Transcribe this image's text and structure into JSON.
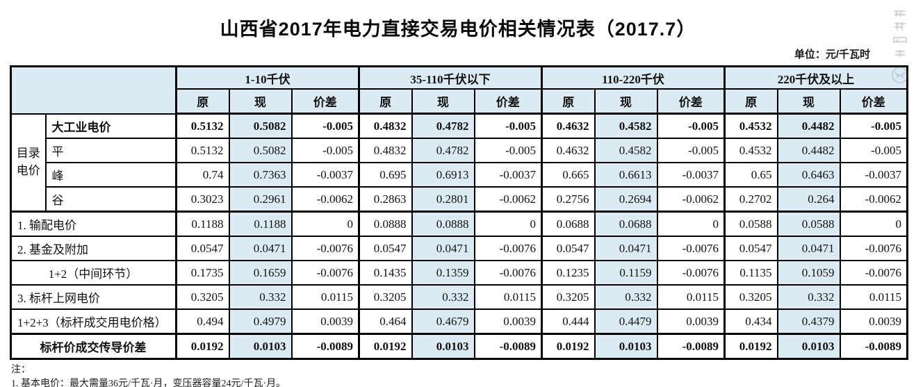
{
  "title": "山西省2017年电力直接交易电价相关情况表（2017.7）",
  "unit_label": "单位：元/千瓦时",
  "watermark_icon": "illegible-vertical-stamp",
  "colors": {
    "header_blue": "#dcebf3",
    "current_price_column_blue": "#dcebf3",
    "border_black": "#000000"
  },
  "table": {
    "catalog_group_label": "目录电价",
    "voltage_groups": [
      "1-10千伏",
      "35-110千伏以下",
      "110-220千伏",
      "220千伏及以上"
    ],
    "sub_headers": [
      "原",
      "现",
      "价差"
    ],
    "rows": [
      {
        "label": "大工业电价",
        "values": [
          "0.5132",
          "0.5082",
          "-0.005",
          "0.4832",
          "0.4782",
          "-0.005",
          "0.4632",
          "0.4582",
          "-0.005",
          "0.4532",
          "0.4482",
          "-0.005"
        ]
      },
      {
        "label": "平",
        "values": [
          "0.5132",
          "0.5082",
          "-0.005",
          "0.4832",
          "0.4782",
          "-0.005",
          "0.4632",
          "0.4582",
          "-0.005",
          "0.4532",
          "0.4482",
          "-0.005"
        ]
      },
      {
        "label": "峰",
        "values": [
          "0.74",
          "0.7363",
          "-0.0037",
          "0.695",
          "0.6913",
          "-0.0037",
          "0.665",
          "0.6613",
          "-0.0037",
          "0.65",
          "0.6463",
          "-0.0037"
        ]
      },
      {
        "label": "谷",
        "values": [
          "0.3023",
          "0.2961",
          "-0.0062",
          "0.2863",
          "0.2801",
          "-0.0062",
          "0.2756",
          "0.2694",
          "-0.0062",
          "0.2702",
          "0.264",
          "-0.0062"
        ]
      },
      {
        "label": "1. 输配电价",
        "values": [
          "0.1188",
          "0.1188",
          "0",
          "0.0888",
          "0.0888",
          "0",
          "0.0688",
          "0.0688",
          "0",
          "0.0588",
          "0.0588",
          "0"
        ]
      },
      {
        "label": "2. 基金及附加",
        "values": [
          "0.0547",
          "0.0471",
          "-0.0076",
          "0.0547",
          "0.0471",
          "-0.0076",
          "0.0547",
          "0.0471",
          "-0.0076",
          "0.0547",
          "0.0471",
          "-0.0076"
        ]
      },
      {
        "label": "1+2（中间环节）",
        "values": [
          "0.1735",
          "0.1659",
          "-0.0076",
          "0.1435",
          "0.1359",
          "-0.0076",
          "0.1235",
          "0.1159",
          "-0.0076",
          "0.1135",
          "0.1059",
          "-0.0076"
        ]
      },
      {
        "label": "3. 标杆上网电价",
        "values": [
          "0.3205",
          "0.332",
          "0.0115",
          "0.3205",
          "0.332",
          "0.0115",
          "0.3205",
          "0.332",
          "0.0115",
          "0.3205",
          "0.332",
          "0.0115"
        ]
      },
      {
        "label": "1+2+3（标杆成交用电价格）",
        "values": [
          "0.494",
          "0.4979",
          "0.0039",
          "0.464",
          "0.4679",
          "0.0039",
          "0.444",
          "0.4479",
          "0.0039",
          "0.434",
          "0.4379",
          "0.0039"
        ]
      },
      {
        "label": "标杆价成交传导价差",
        "values": [
          "0.0192",
          "0.0103",
          "-0.0089",
          "0.0192",
          "0.0103",
          "-0.0089",
          "0.0192",
          "0.0103",
          "-0.0089",
          "0.0192",
          "0.0103",
          "-0.0089"
        ]
      }
    ]
  },
  "notes": [
    "注：",
    "1. 基本电价：最大需量36元/千瓦·月，变压器容量24元/千瓦·月。"
  ]
}
